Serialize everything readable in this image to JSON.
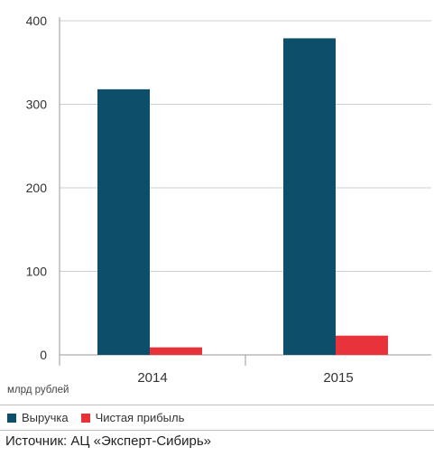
{
  "chart_data": {
    "type": "bar",
    "categories": [
      "2014",
      "2015"
    ],
    "series": [
      {
        "name": "Выручка",
        "values": [
          318,
          379
        ],
        "color": "#0d4f6b"
      },
      {
        "name": "Чистая прибыль",
        "values": [
          9,
          23
        ],
        "color": "#e8333a"
      }
    ],
    "ylim": [
      0,
      400
    ],
    "yticks": [
      0,
      100,
      200,
      300,
      400
    ],
    "unit_label": "млрд рублей",
    "grid": true,
    "legend_position": "bottom-left"
  },
  "source": "Источник: АЦ «Эксперт-Сибирь»"
}
